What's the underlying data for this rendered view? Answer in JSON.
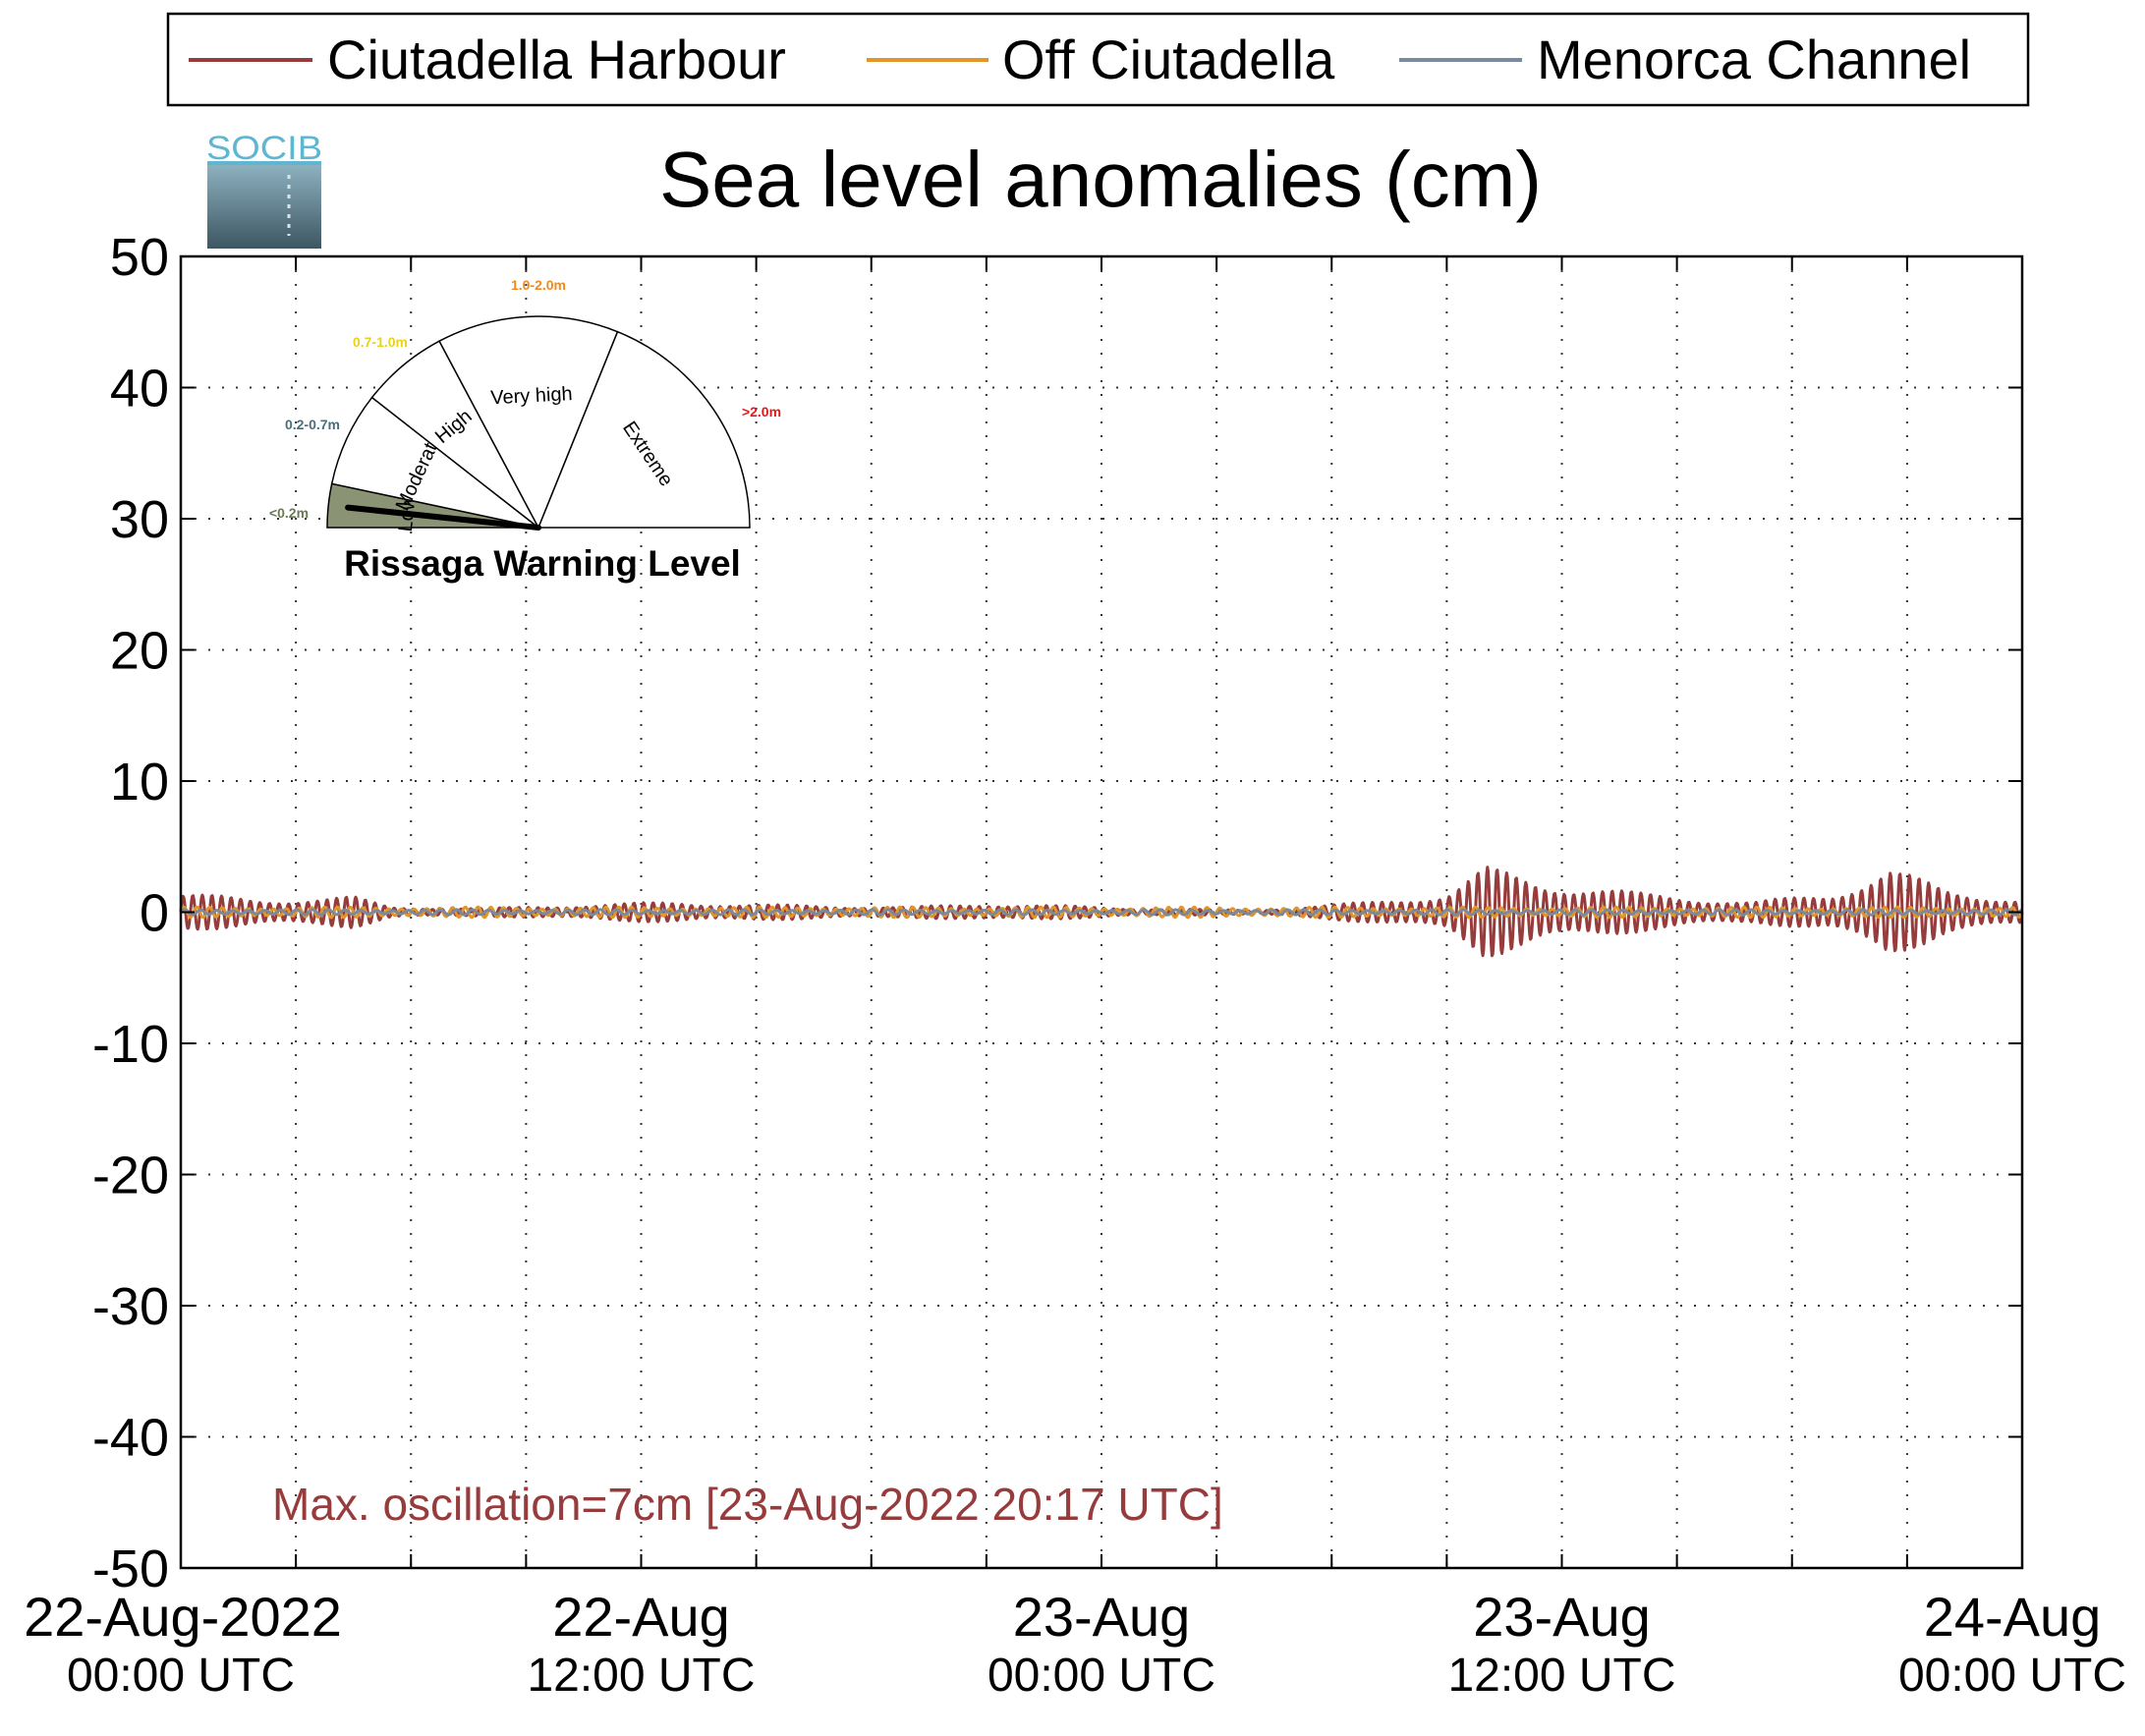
{
  "chart_data": {
    "type": "line",
    "title": "Sea level anomalies (cm)",
    "xlabel": "",
    "ylabel": "",
    "ylim": [
      -50,
      50
    ],
    "yticks": [
      50,
      40,
      30,
      20,
      10,
      0,
      -10,
      -20,
      -30,
      -40,
      -50
    ],
    "ytick_labels": [
      "50",
      "40",
      "30",
      "20",
      "10",
      "0",
      "-10",
      "-20",
      "-30",
      "-40",
      "-50"
    ],
    "xlim": [
      "2022-08-22 00:00",
      "2022-08-24 00:00"
    ],
    "x_tick_hours": [
      0,
      12,
      24,
      36,
      48
    ],
    "x_tick_labels": [
      {
        "line1": "22-Aug-2022",
        "line2": "00:00 UTC"
      },
      {
        "line1": "22-Aug",
        "line2": "12:00 UTC"
      },
      {
        "line1": "23-Aug",
        "line2": "00:00 UTC"
      },
      {
        "line1": "23-Aug",
        "line2": "12:00 UTC"
      },
      {
        "line1": "24-Aug",
        "line2": "00:00 UTC"
      }
    ],
    "x_grid_hours": [
      3,
      6,
      9,
      12,
      15,
      18,
      21,
      24,
      27,
      30,
      33,
      36,
      39,
      42,
      45
    ],
    "grid": true,
    "legend_position": "top",
    "series": [
      {
        "name": "Ciutadella Harbour",
        "color": "#963c3c",
        "amplitude_envelope_cm": [
          {
            "hour": 0,
            "amp": 1.5
          },
          {
            "hour": 2,
            "amp": 1.0
          },
          {
            "hour": 4.5,
            "amp": 1.2
          },
          {
            "hour": 5.5,
            "amp": 0.4
          },
          {
            "hour": 8,
            "amp": 0.3
          },
          {
            "hour": 10.5,
            "amp": 0.6
          },
          {
            "hour": 13,
            "amp": 0.8
          },
          {
            "hour": 15,
            "amp": 0.6
          },
          {
            "hour": 19,
            "amp": 0.4
          },
          {
            "hour": 21,
            "amp": 0.7
          },
          {
            "hour": 25,
            "amp": 0.3
          },
          {
            "hour": 28,
            "amp": 0.15
          },
          {
            "hour": 31,
            "amp": 0.8
          },
          {
            "hour": 33,
            "amp": 1.5
          },
          {
            "hour": 34,
            "amp": 3.5
          },
          {
            "hour": 35.5,
            "amp": 2.5
          },
          {
            "hour": 38,
            "amp": 1.5
          },
          {
            "hour": 41,
            "amp": 0.8
          },
          {
            "hour": 43,
            "amp": 1.5
          },
          {
            "hour": 44.5,
            "amp": 3.5
          },
          {
            "hour": 46,
            "amp": 1.8
          },
          {
            "hour": 48,
            "amp": 1.0
          }
        ],
        "oscillation_period_min": 15
      },
      {
        "name": "Off Ciutadella",
        "color": "#e0962a",
        "amplitude_envelope_cm": [
          {
            "hour": 0,
            "amp": 0.4
          },
          {
            "hour": 48,
            "amp": 0.4
          }
        ],
        "oscillation_period_min": 20
      },
      {
        "name": "Menorca Channel",
        "color": "#7a8a9e",
        "amplitude_envelope_cm": [
          {
            "hour": 0,
            "amp": 0.2
          },
          {
            "hour": 48,
            "amp": 0.2
          }
        ],
        "oscillation_period_min": 25
      }
    ],
    "annotation": "Max. oscillation=7cm [23-Aug-2022 20:17 UTC]",
    "annotation_color": "#963c3c"
  },
  "logo": {
    "text": "SOCIB"
  },
  "gauge": {
    "title": "Rissaga Warning Level",
    "current_level": "Low",
    "sectors": [
      {
        "label": "Low",
        "range": "<0.2m",
        "range_color": "#6b7a55",
        "fill": "#8a9374"
      },
      {
        "label": "Moderate",
        "range": "0.2-0.7m",
        "range_color": "#4a6f7a",
        "fill": "#ffffff"
      },
      {
        "label": "High",
        "range": "0.7-1.0m",
        "range_color": "#e8d21a",
        "fill": "#ffffff"
      },
      {
        "label": "Very high",
        "range": "1.0-2.0m",
        "range_color": "#f08a1a",
        "fill": "#ffffff"
      },
      {
        "label": "Extreme",
        "range": ">2.0m",
        "range_color": "#e01a1a",
        "fill": "#ffffff"
      }
    ]
  }
}
